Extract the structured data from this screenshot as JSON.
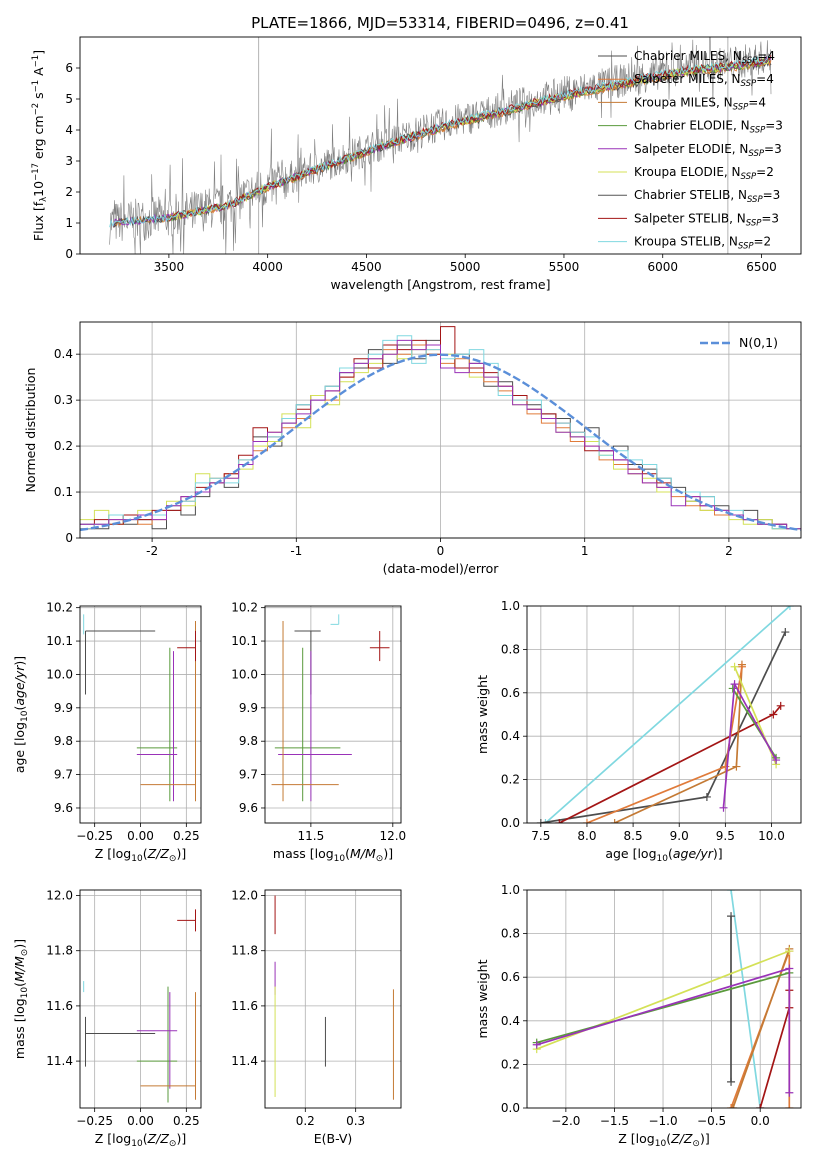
{
  "figure": {
    "title": "PLATE=1866, MJD=53314, FIBERID=0496, z=0.41"
  },
  "palette": {
    "c0": "#4d4d4d",
    "c1": "#e07b3a",
    "c2": "#c47a35",
    "c3": "#5a9a3c",
    "c4": "#9932b8",
    "c5": "#d4e157",
    "c6": "#555555",
    "c7": "#a31515",
    "c8": "#80d8e0",
    "data": "#808080",
    "gaussian": "#5b8fd9",
    "salmon": "#f08080",
    "pink": "#e8a0b0"
  },
  "chart_data": [
    {
      "id": "spectrum",
      "type": "line",
      "xlabel": "wavelength [Angstrom, rest frame]",
      "ylabel": "Flux [f_λ10^-17 erg cm^-2 s^-1 A^-1]",
      "xlim": [
        3050,
        6700
      ],
      "ylim": [
        0,
        7
      ],
      "xticks": [
        3500,
        4000,
        4500,
        5000,
        5500,
        6000,
        6500
      ],
      "yticks": [
        0,
        1,
        2,
        3,
        4,
        5,
        6
      ],
      "continuum_x": [
        3200,
        3500,
        3800,
        4000,
        4300,
        4600,
        4900,
        5200,
        5500,
        5800,
        6100,
        6400,
        6550
      ],
      "continuum_y": [
        1.0,
        1.2,
        1.6,
        2.2,
        2.9,
        3.6,
        4.2,
        4.7,
        5.2,
        5.6,
        6.0,
        6.2,
        6.4
      ],
      "legend": [
        {
          "label": "Chabrier MILES, N",
          "sub": "SSP",
          "tail": "=4",
          "color": "c0"
        },
        {
          "label": "Salpeter MILES, N",
          "sub": "SSP",
          "tail": "=4",
          "color": "c1"
        },
        {
          "label": "Kroupa MILES, N",
          "sub": "SSP",
          "tail": "=4",
          "color": "c2"
        },
        {
          "label": "Chabrier ELODIE, N",
          "sub": "SSP",
          "tail": "=3",
          "color": "c3"
        },
        {
          "label": "Salpeter ELODIE, N",
          "sub": "SSP",
          "tail": "=3",
          "color": "c4"
        },
        {
          "label": "Kroupa ELODIE, N",
          "sub": "SSP",
          "tail": "=2",
          "color": "c5"
        },
        {
          "label": "Chabrier STELIB, N",
          "sub": "SSP",
          "tail": "=3",
          "color": "c6"
        },
        {
          "label": "Salpeter STELIB, N",
          "sub": "SSP",
          "tail": "=3",
          "color": "c7"
        },
        {
          "label": "Kroupa STELIB, N",
          "sub": "SSP",
          "tail": "=2",
          "color": "c8"
        }
      ]
    },
    {
      "id": "residuals",
      "type": "line",
      "xlabel": "(data-model)/error",
      "ylabel": "Normed distribution",
      "xlim": [
        -2.5,
        2.5
      ],
      "ylim": [
        0,
        0.47
      ],
      "xticks": [
        -2,
        -1,
        0,
        1,
        2
      ],
      "yticks": [
        0.0,
        0.1,
        0.2,
        0.3,
        0.4
      ],
      "gaussian_label": "N(0,1)",
      "bin_width": 0.1,
      "series": [
        {
          "color": "c0",
          "values": [
            0.03,
            0.02,
            0.05,
            0.03,
            0.04,
            0.02,
            0.06,
            0.05,
            0.09,
            0.12,
            0.11,
            0.16,
            0.22,
            0.2,
            0.25,
            0.29,
            0.31,
            0.33,
            0.36,
            0.37,
            0.41,
            0.38,
            0.42,
            0.39,
            0.43,
            0.37,
            0.4,
            0.38,
            0.33,
            0.34,
            0.31,
            0.29,
            0.27,
            0.26,
            0.22,
            0.24,
            0.19,
            0.2,
            0.16,
            0.15,
            0.13,
            0.11,
            0.08,
            0.09,
            0.07,
            0.05,
            0.06,
            0.04,
            0.03,
            0.02
          ]
        },
        {
          "color": "c1",
          "values": [
            0.02,
            0.03,
            0.04,
            0.05,
            0.03,
            0.04,
            0.07,
            0.08,
            0.1,
            0.13,
            0.14,
            0.17,
            0.19,
            0.23,
            0.24,
            0.26,
            0.31,
            0.3,
            0.35,
            0.38,
            0.39,
            0.41,
            0.4,
            0.42,
            0.41,
            0.38,
            0.39,
            0.36,
            0.34,
            0.32,
            0.3,
            0.27,
            0.25,
            0.24,
            0.21,
            0.2,
            0.17,
            0.16,
            0.14,
            0.12,
            0.11,
            0.09,
            0.07,
            0.06,
            0.05,
            0.05,
            0.04,
            0.03,
            0.02,
            0.02
          ]
        },
        {
          "color": "c5",
          "values": [
            0.04,
            0.06,
            0.03,
            0.04,
            0.06,
            0.05,
            0.08,
            0.07,
            0.14,
            0.12,
            0.13,
            0.15,
            0.2,
            0.21,
            0.27,
            0.24,
            0.31,
            0.29,
            0.34,
            0.36,
            0.38,
            0.4,
            0.39,
            0.41,
            0.4,
            0.4,
            0.37,
            0.35,
            0.35,
            0.33,
            0.29,
            0.28,
            0.26,
            0.23,
            0.22,
            0.21,
            0.18,
            0.15,
            0.14,
            0.13,
            0.1,
            0.1,
            0.08,
            0.06,
            0.06,
            0.04,
            0.03,
            0.04,
            0.02,
            0.02
          ]
        },
        {
          "color": "c7",
          "values": [
            0.02,
            0.04,
            0.03,
            0.05,
            0.04,
            0.06,
            0.06,
            0.09,
            0.11,
            0.12,
            0.14,
            0.18,
            0.24,
            0.22,
            0.26,
            0.28,
            0.3,
            0.32,
            0.35,
            0.39,
            0.37,
            0.42,
            0.41,
            0.43,
            0.4,
            0.46,
            0.37,
            0.37,
            0.36,
            0.33,
            0.31,
            0.28,
            0.27,
            0.25,
            0.23,
            0.19,
            0.19,
            0.17,
            0.15,
            0.14,
            0.12,
            0.1,
            0.09,
            0.07,
            0.06,
            0.05,
            0.04,
            0.03,
            0.03,
            0.02
          ]
        },
        {
          "color": "c8",
          "values": [
            0.02,
            0.03,
            0.05,
            0.04,
            0.05,
            0.05,
            0.07,
            0.08,
            0.12,
            0.13,
            0.12,
            0.17,
            0.21,
            0.22,
            0.26,
            0.29,
            0.3,
            0.33,
            0.37,
            0.38,
            0.4,
            0.43,
            0.44,
            0.38,
            0.41,
            0.39,
            0.4,
            0.41,
            0.38,
            0.31,
            0.3,
            0.3,
            0.26,
            0.25,
            0.23,
            0.22,
            0.18,
            0.19,
            0.17,
            0.16,
            0.13,
            0.1,
            0.1,
            0.09,
            0.06,
            0.06,
            0.04,
            0.03,
            0.02,
            0.02
          ]
        },
        {
          "color": "c4",
          "values": [
            0.03,
            0.03,
            0.04,
            0.04,
            0.05,
            0.04,
            0.07,
            0.09,
            0.1,
            0.12,
            0.13,
            0.16,
            0.21,
            0.23,
            0.25,
            0.27,
            0.3,
            0.32,
            0.36,
            0.38,
            0.39,
            0.4,
            0.43,
            0.41,
            0.42,
            0.37,
            0.36,
            0.38,
            0.35,
            0.33,
            0.29,
            0.28,
            0.26,
            0.23,
            0.22,
            0.2,
            0.19,
            0.17,
            0.14,
            0.12,
            0.11,
            0.07,
            0.09,
            0.07,
            0.06,
            0.05,
            0.04,
            0.03,
            0.03,
            0.02
          ]
        }
      ]
    },
    {
      "id": "z_age",
      "type": "scatter",
      "xlabel": "Z [log10(Z/Z⊙)]",
      "ylabel": "age [log10(age/yr)]",
      "xlim": [
        -0.33,
        0.33
      ],
      "ylim": [
        9.555,
        10.205
      ],
      "xticks": [
        -0.25,
        0.0,
        0.25
      ],
      "xticklabels": [
        "−0.25",
        "0.00",
        "0.25"
      ],
      "yticks": [
        9.6,
        9.7,
        9.8,
        9.9,
        10.0,
        10.1,
        10.2
      ],
      "yticklabels": [
        "9.6",
        "9.7",
        "9.8",
        "9.9",
        "10.0",
        "10.1",
        "10.2"
      ],
      "points": [
        {
          "x": -0.3,
          "y": 10.13,
          "xlo": -0.3,
          "xhi": 0.08,
          "ylo": 9.94,
          "yhi": 10.13,
          "color": "c0"
        },
        {
          "x": 0.16,
          "y": 9.78,
          "xlo": -0.02,
          "xhi": 0.2,
          "ylo": 9.62,
          "yhi": 10.08,
          "color": "c3"
        },
        {
          "x": 0.18,
          "y": 9.76,
          "xlo": -0.02,
          "xhi": 0.2,
          "ylo": 9.62,
          "yhi": 10.07,
          "color": "c4"
        },
        {
          "x": 0.3,
          "y": 9.67,
          "xlo": 0.0,
          "xhi": 0.3,
          "ylo": 9.62,
          "yhi": 10.16,
          "color": "c2"
        },
        {
          "x": 0.3,
          "y": 10.08,
          "xlo": 0.2,
          "xhi": 0.3,
          "ylo": 10.04,
          "yhi": 10.13,
          "color": "c7"
        },
        {
          "x": -0.31,
          "y": 10.15,
          "xlo": -0.31,
          "xhi": -0.31,
          "ylo": 10.12,
          "yhi": 10.18,
          "color": "c8"
        }
      ]
    },
    {
      "id": "mass_age",
      "type": "scatter",
      "xlabel": "mass [log10(M/M⊙)]",
      "ylabel": "",
      "xlim": [
        11.22,
        12.05
      ],
      "ylim": [
        9.555,
        10.205
      ],
      "xticks": [
        11.5,
        12.0
      ],
      "xticklabels": [
        "11.5",
        "12.0"
      ],
      "yticks": [
        9.6,
        9.7,
        9.8,
        9.9,
        10.0,
        10.1,
        10.2
      ],
      "yticklabels": [
        "9.6",
        "9.7",
        "9.8",
        "9.9",
        "10.0",
        "10.1",
        "10.2"
      ],
      "points": [
        {
          "x": 11.5,
          "y": 10.13,
          "xlo": 11.4,
          "xhi": 11.56,
          "ylo": 9.94,
          "yhi": 10.13,
          "color": "c0"
        },
        {
          "x": 11.45,
          "y": 9.78,
          "xlo": 11.28,
          "xhi": 11.68,
          "ylo": 9.62,
          "yhi": 10.08,
          "color": "c3"
        },
        {
          "x": 11.5,
          "y": 9.76,
          "xlo": 11.3,
          "xhi": 11.75,
          "ylo": 9.62,
          "yhi": 10.07,
          "color": "c4"
        },
        {
          "x": 11.33,
          "y": 9.67,
          "xlo": 11.26,
          "xhi": 11.67,
          "ylo": 9.62,
          "yhi": 10.16,
          "color": "c2"
        },
        {
          "x": 11.92,
          "y": 10.08,
          "xlo": 11.86,
          "xhi": 11.98,
          "ylo": 10.04,
          "yhi": 10.13,
          "color": "c7"
        },
        {
          "x": 11.67,
          "y": 10.15,
          "xlo": 11.62,
          "xhi": 11.67,
          "ylo": 10.15,
          "yhi": 10.18,
          "color": "c8"
        }
      ]
    },
    {
      "id": "age_weight",
      "type": "line",
      "xlabel": "age [log10(age/yr)]",
      "ylabel": "mass weight",
      "xlim": [
        7.35,
        10.32
      ],
      "ylim": [
        0,
        1
      ],
      "xticks": [
        7.5,
        8.0,
        8.5,
        9.0,
        9.5,
        10.0
      ],
      "xticklabels": [
        "7.5",
        "8.0",
        "8.5",
        "9.0",
        "9.5",
        "10.0"
      ],
      "yticks": [
        0,
        0.2,
        0.4,
        0.6,
        0.8,
        1.0
      ],
      "yticklabels": [
        "0.0",
        "0.2",
        "0.4",
        "0.6",
        "0.8",
        "1.0"
      ],
      "series": [
        {
          "color": "c8",
          "x": [
            7.55,
            10.2
          ],
          "y": [
            0.0,
            1.0
          ]
        },
        {
          "color": "c0",
          "x": [
            7.5,
            9.3,
            10.15
          ],
          "y": [
            0.0,
            0.12,
            0.88
          ]
        },
        {
          "color": "c7",
          "x": [
            7.7,
            10.02,
            10.1
          ],
          "y": [
            0.0,
            0.5,
            0.54
          ]
        },
        {
          "color": "c2",
          "x": [
            8.3,
            9.62,
            9.68
          ],
          "y": [
            0.0,
            0.26,
            0.73
          ]
        },
        {
          "color": "c1",
          "x": [
            8.0,
            9.5,
            9.68
          ],
          "y": [
            0.0,
            0.26,
            0.72
          ]
        },
        {
          "color": "c5",
          "x": [
            9.6,
            10.05
          ],
          "y": [
            0.72,
            0.27
          ]
        },
        {
          "color": "c3",
          "x": [
            9.58,
            10.05
          ],
          "y": [
            0.62,
            0.3
          ]
        },
        {
          "color": "c4",
          "x": [
            9.48,
            9.6,
            10.05
          ],
          "y": [
            0.07,
            0.64,
            0.29
          ]
        }
      ]
    },
    {
      "id": "z_mass",
      "type": "scatter",
      "xlabel": "Z [log10(Z/Z⊙)]",
      "ylabel": "mass [log10(M/M⊙)]",
      "xlim": [
        -0.33,
        0.33
      ],
      "ylim": [
        11.23,
        12.02
      ],
      "xticks": [
        -0.25,
        0.0,
        0.25
      ],
      "xticklabels": [
        "−0.25",
        "0.00",
        "0.25"
      ],
      "yticks": [
        11.4,
        11.6,
        11.8,
        12.0
      ],
      "yticklabels": [
        "11.4",
        "11.6",
        "11.8",
        "12.0"
      ],
      "points": [
        {
          "x": -0.3,
          "y": 11.5,
          "xlo": -0.3,
          "xhi": 0.08,
          "ylo": 11.38,
          "yhi": 11.56,
          "color": "c0"
        },
        {
          "x": 0.15,
          "y": 11.4,
          "xlo": -0.02,
          "xhi": 0.2,
          "ylo": 11.25,
          "yhi": 11.67,
          "color": "c3"
        },
        {
          "x": 0.16,
          "y": 11.51,
          "xlo": -0.02,
          "xhi": 0.2,
          "ylo": 11.3,
          "yhi": 11.65,
          "color": "c4"
        },
        {
          "x": 0.3,
          "y": 11.31,
          "xlo": 0.0,
          "xhi": 0.3,
          "ylo": 11.26,
          "yhi": 11.65,
          "color": "c2"
        },
        {
          "x": 0.3,
          "y": 11.91,
          "xlo": 0.2,
          "xhi": 0.3,
          "ylo": 11.87,
          "yhi": 11.95,
          "color": "c7"
        },
        {
          "x": -0.31,
          "y": 11.67,
          "xlo": -0.31,
          "xhi": -0.31,
          "ylo": 11.65,
          "yhi": 11.69,
          "color": "c8"
        }
      ]
    },
    {
      "id": "ebv_mass",
      "type": "scatter",
      "xlabel": "E(B-V)",
      "ylabel": "",
      "xlim": [
        0.12,
        0.39
      ],
      "ylim": [
        11.23,
        12.02
      ],
      "xticks": [
        0.2,
        0.3
      ],
      "xticklabels": [
        "0.2",
        "0.3"
      ],
      "yticks": [
        11.4,
        11.6,
        11.8,
        12.0
      ],
      "yticklabels": [
        "11.4",
        "11.6",
        "11.8",
        "12.0"
      ],
      "vlines": [
        {
          "x": 0.14,
          "ylo": 11.86,
          "yhi": 12.0,
          "color": "c7"
        },
        {
          "x": 0.14,
          "ylo": 11.64,
          "yhi": 11.76,
          "color": "c4"
        },
        {
          "x": 0.14,
          "ylo": 11.27,
          "yhi": 11.67,
          "color": "c5"
        },
        {
          "x": 0.24,
          "ylo": 11.38,
          "yhi": 11.56,
          "color": "c0"
        },
        {
          "x": 0.375,
          "ylo": 11.26,
          "yhi": 11.66,
          "color": "c2"
        }
      ]
    },
    {
      "id": "z_weight",
      "type": "line",
      "xlabel": "Z [log10(Z/Z⊙)]",
      "ylabel": "mass weight",
      "xlim": [
        -2.4,
        0.42
      ],
      "ylim": [
        0,
        1
      ],
      "xticks": [
        -2.0,
        -1.5,
        -1.0,
        -0.5,
        0.0
      ],
      "xticklabels": [
        "−2.0",
        "−1.5",
        "−1.0",
        "−0.5",
        "0.0"
      ],
      "yticks": [
        0,
        0.2,
        0.4,
        0.6,
        0.8,
        1.0
      ],
      "yticklabels": [
        "0.0",
        "0.2",
        "0.4",
        "0.6",
        "0.8",
        "1.0"
      ],
      "series": [
        {
          "color": "c8",
          "x": [
            -0.3,
            0.0
          ],
          "y": [
            1.0,
            0.0
          ]
        },
        {
          "color": "c0",
          "x": [
            -0.3,
            -0.3
          ],
          "y": [
            0.12,
            0.88
          ]
        },
        {
          "color": "c7",
          "x": [
            0.0,
            0.3,
            0.3
          ],
          "y": [
            0.0,
            0.46,
            0.54
          ]
        },
        {
          "color": "c1",
          "x": [
            -0.3,
            0.3,
            0.3
          ],
          "y": [
            0.0,
            0.72,
            0.0
          ]
        },
        {
          "color": "c2",
          "x": [
            -0.28,
            0.3
          ],
          "y": [
            0.0,
            0.73
          ]
        },
        {
          "color": "c5",
          "x": [
            -2.3,
            0.3
          ],
          "y": [
            0.27,
            0.72
          ]
        },
        {
          "color": "c3",
          "x": [
            -2.3,
            0.3
          ],
          "y": [
            0.3,
            0.62
          ]
        },
        {
          "color": "c4",
          "x": [
            -2.3,
            0.3,
            0.3
          ],
          "y": [
            0.29,
            0.64,
            0.07
          ]
        }
      ]
    }
  ]
}
